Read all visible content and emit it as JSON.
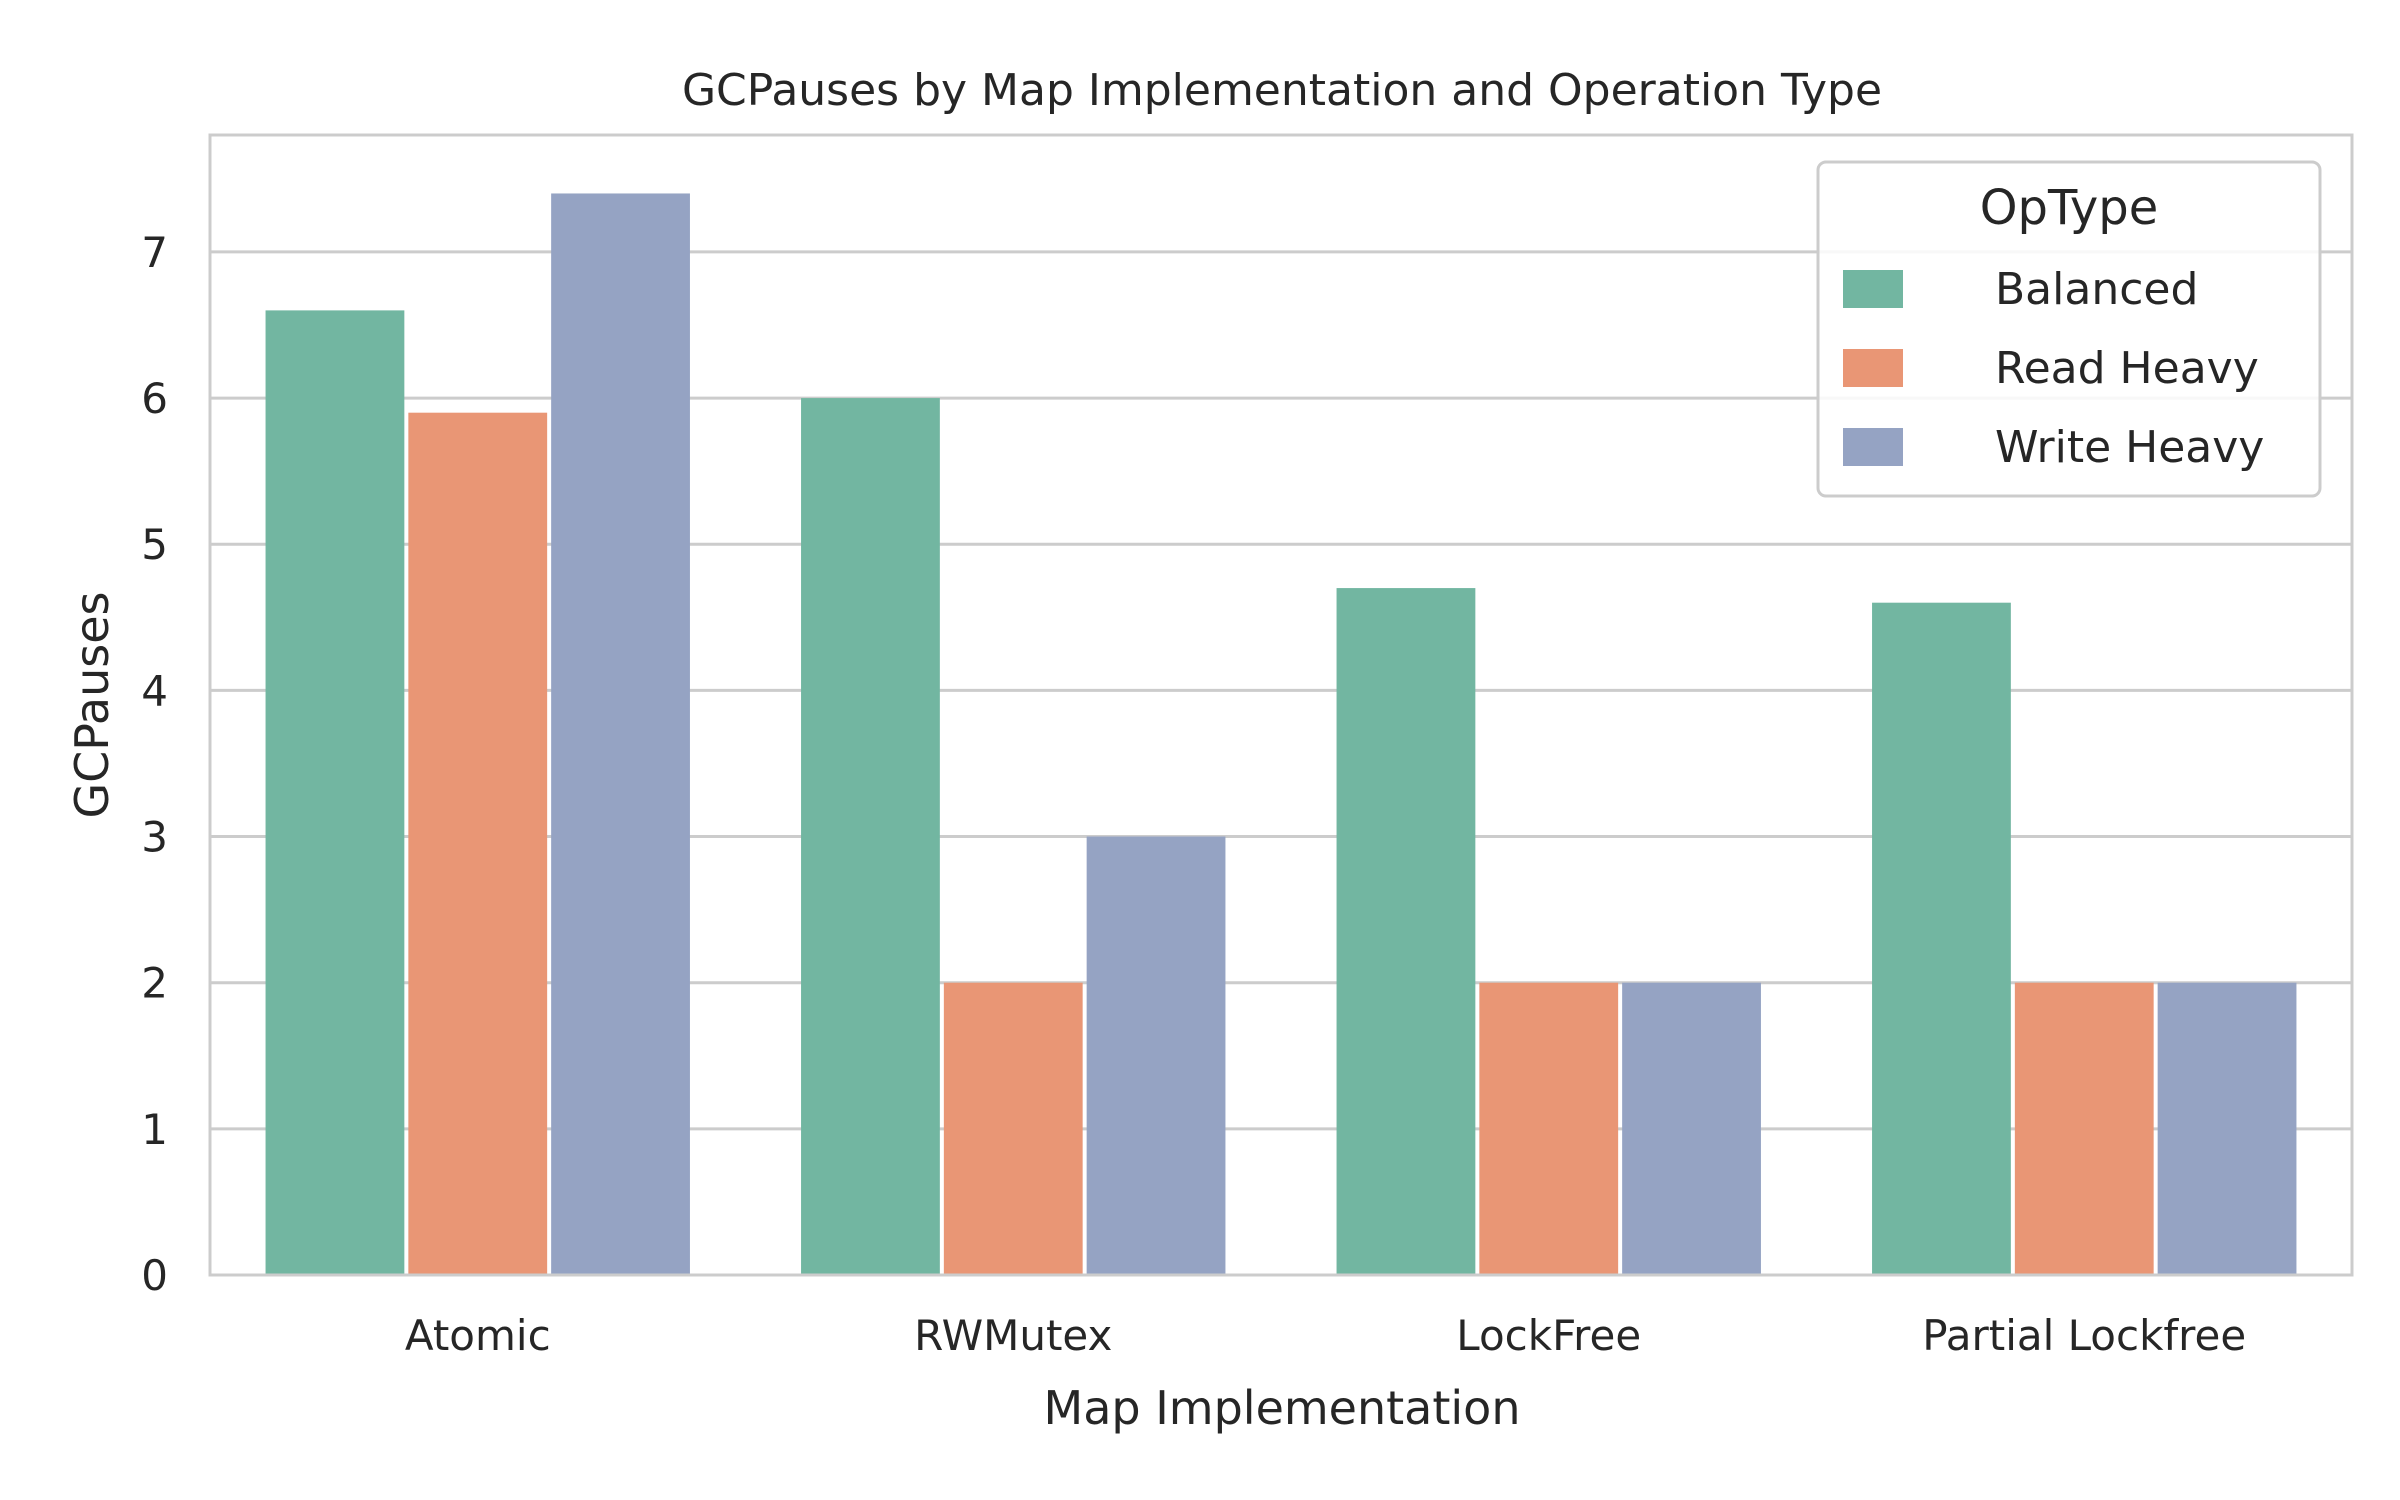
{
  "chart_data": {
    "type": "bar",
    "title": "GCPauses by Map Implementation and Operation Type",
    "xlabel": "Map Implementation",
    "ylabel": "GCPauses",
    "categories": [
      "Atomic",
      "RWMutex",
      "LockFree",
      "Partial Lockfree"
    ],
    "ylim": [
      0,
      7.8
    ],
    "yticks": [
      0,
      1,
      2,
      3,
      4,
      5,
      6,
      7
    ],
    "grid": true,
    "legend": {
      "title": "OpType",
      "position": "top-right"
    },
    "series": [
      {
        "name": "Balanced",
        "color": "#72b6a1",
        "values": [
          6.6,
          6.0,
          4.7,
          4.6
        ]
      },
      {
        "name": "Read Heavy",
        "color": "#e99675",
        "values": [
          5.9,
          2.0,
          2.0,
          2.0
        ]
      },
      {
        "name": "Write Heavy",
        "color": "#95a3c3",
        "values": [
          7.4,
          3.0,
          2.0,
          2.0
        ]
      }
    ]
  }
}
